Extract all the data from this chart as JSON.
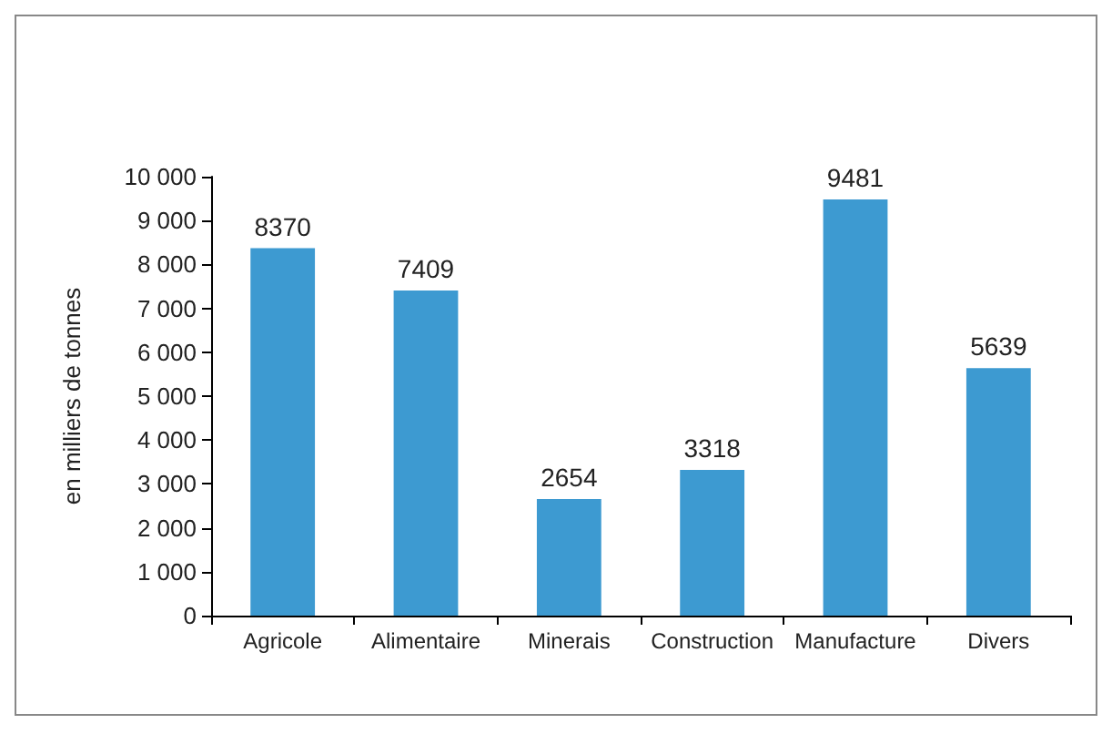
{
  "chart_data": {
    "type": "bar",
    "ylabel": "en milliers de tonnes",
    "categories": [
      "Agricole",
      "Alimentaire",
      "Minerais",
      "Construction",
      "Manufacture",
      "Divers"
    ],
    "values": [
      8370,
      7409,
      2654,
      3318,
      9481,
      5639
    ],
    "color": "#3d9ad1",
    "ylim": [
      0,
      10000
    ],
    "yticks": [
      0,
      {
        "value": 1000,
        "label": "1 000"
      },
      {
        "value": 2000,
        "label": "2 000"
      },
      {
        "value": 3000,
        "label": "3 000"
      },
      {
        "value": 4000,
        "label": "4 000"
      },
      {
        "value": 5000,
        "label": "5 000"
      },
      {
        "value": 6000,
        "label": "6 000"
      },
      {
        "value": 7000,
        "label": "7 000"
      },
      {
        "value": 8000,
        "label": "8 000"
      },
      {
        "value": 9000,
        "label": "9 000"
      },
      {
        "value": 10000,
        "label": "10 000"
      }
    ],
    "grid": false,
    "data_labels": true
  }
}
